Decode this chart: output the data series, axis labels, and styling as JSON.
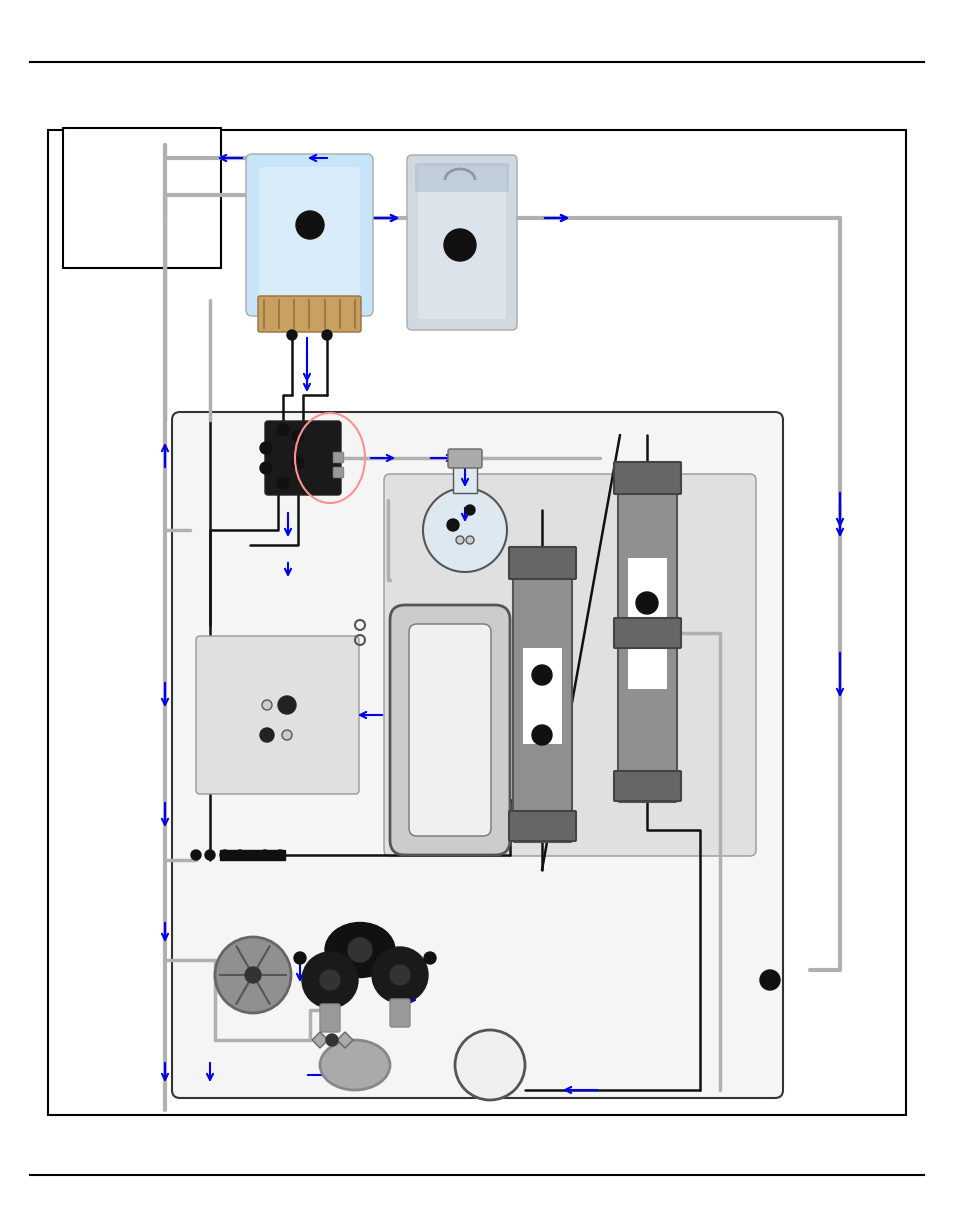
{
  "fig_w": 9.54,
  "fig_h": 12.27,
  "dpi": 100,
  "bg": "#ffffff",
  "arrow_blue": "#0000ee",
  "tube_gray": "#aaaaaa",
  "tube_black": "#111111",
  "dark": "#111111"
}
